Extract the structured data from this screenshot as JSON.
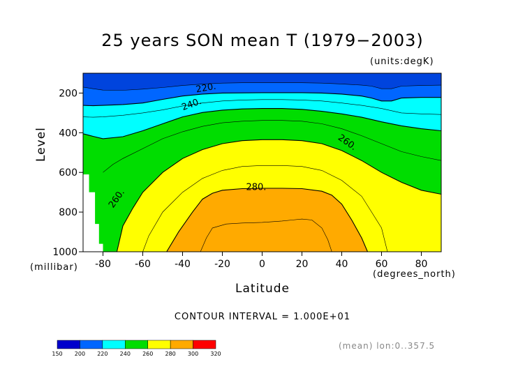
{
  "chart_data": {
    "type": "contour",
    "title": "25 years SON mean T (1979−2003)",
    "units_note": "(units:degK)",
    "xlabel": "Latitude",
    "x_unit": "(degrees_north)",
    "ylabel": "Level",
    "y_unit": "(millibar)",
    "xlim": [
      -90,
      90
    ],
    "ylim": [
      100,
      1000
    ],
    "x_ticks": [
      -80,
      -60,
      -40,
      -20,
      0,
      20,
      40,
      60,
      80
    ],
    "y_ticks": [
      200,
      400,
      600,
      800,
      1000
    ],
    "contour_interval_text": "CONTOUR INTERVAL = 1.000E+01",
    "contour_labels": [
      "220.",
      "240.",
      "260.",
      "280.",
      "260."
    ],
    "colorbar": {
      "levels": [
        150,
        200,
        220,
        240,
        260,
        280,
        300,
        320
      ],
      "colors": [
        "#0000cc",
        "#0066ff",
        "#00ffff",
        "#00dd00",
        "#ffff00",
        "#ffaa00",
        "#ff0000"
      ]
    },
    "fill_colors": {
      "lt210": "#0044dd",
      "210_220": "#0066ff",
      "220_240": "#00ffff",
      "240_260": "#00dd00",
      "260_280": "#ffff00",
      "280_300": "#ffaa00"
    },
    "levels": {
      "l210": [
        [
          -90,
          170
        ],
        [
          -85,
          178
        ],
        [
          -80,
          185
        ],
        [
          -70,
          186
        ],
        [
          -60,
          180
        ],
        [
          -50,
          172
        ],
        [
          -40,
          162
        ],
        [
          -30,
          155
        ],
        [
          -20,
          150
        ],
        [
          -10,
          148
        ],
        [
          0,
          148
        ],
        [
          10,
          148
        ],
        [
          20,
          148
        ],
        [
          30,
          150
        ],
        [
          40,
          154
        ],
        [
          50,
          160
        ],
        [
          55,
          165
        ],
        [
          60,
          178
        ],
        [
          65,
          178
        ],
        [
          70,
          165
        ],
        [
          80,
          162
        ],
        [
          90,
          160
        ]
      ],
      "l220": [
        [
          -90,
          262
        ],
        [
          -85,
          264
        ],
        [
          -80,
          262
        ],
        [
          -70,
          258
        ],
        [
          -60,
          250
        ],
        [
          -50,
          232
        ],
        [
          -40,
          215
        ],
        [
          -30,
          205
        ],
        [
          -20,
          200
        ],
        [
          -10,
          199
        ],
        [
          0,
          198
        ],
        [
          10,
          198
        ],
        [
          20,
          198
        ],
        [
          30,
          200
        ],
        [
          40,
          205
        ],
        [
          50,
          215
        ],
        [
          55,
          225
        ],
        [
          60,
          240
        ],
        [
          65,
          240
        ],
        [
          70,
          225
        ],
        [
          80,
          222
        ],
        [
          90,
          222
        ]
      ],
      "l230": [
        [
          -90,
          320
        ],
        [
          -85,
          322
        ],
        [
          -80,
          320
        ],
        [
          -70,
          312
        ],
        [
          -60,
          300
        ],
        [
          -50,
          285
        ],
        [
          -40,
          265
        ],
        [
          -30,
          250
        ],
        [
          -20,
          240
        ],
        [
          -10,
          235
        ],
        [
          0,
          233
        ],
        [
          10,
          233
        ],
        [
          20,
          235
        ],
        [
          30,
          240
        ],
        [
          40,
          250
        ],
        [
          50,
          262
        ],
        [
          60,
          278
        ],
        [
          70,
          300
        ],
        [
          80,
          305
        ],
        [
          90,
          308
        ]
      ],
      "l240": [
        [
          -90,
          405
        ],
        [
          -85,
          418
        ],
        [
          -80,
          430
        ],
        [
          -70,
          420
        ],
        [
          -60,
          390
        ],
        [
          -50,
          355
        ],
        [
          -40,
          320
        ],
        [
          -30,
          298
        ],
        [
          -20,
          286
        ],
        [
          -10,
          280
        ],
        [
          0,
          278
        ],
        [
          10,
          278
        ],
        [
          20,
          282
        ],
        [
          30,
          292
        ],
        [
          40,
          305
        ],
        [
          50,
          322
        ],
        [
          60,
          345
        ],
        [
          70,
          365
        ],
        [
          80,
          380
        ],
        [
          90,
          390
        ]
      ],
      "l250": [
        [
          -80,
          600
        ],
        [
          -75,
          560
        ],
        [
          -70,
          530
        ],
        [
          -60,
          480
        ],
        [
          -50,
          430
        ],
        [
          -40,
          395
        ],
        [
          -30,
          368
        ],
        [
          -20,
          350
        ],
        [
          -10,
          342
        ],
        [
          0,
          338
        ],
        [
          10,
          338
        ],
        [
          20,
          342
        ],
        [
          30,
          355
        ],
        [
          40,
          380
        ],
        [
          50,
          415
        ],
        [
          60,
          455
        ],
        [
          70,
          495
        ],
        [
          80,
          520
        ],
        [
          90,
          540
        ]
      ],
      "l260": [
        [
          -73,
          1000
        ],
        [
          -70,
          870
        ],
        [
          -65,
          780
        ],
        [
          -60,
          700
        ],
        [
          -50,
          600
        ],
        [
          -40,
          530
        ],
        [
          -30,
          485
        ],
        [
          -20,
          455
        ],
        [
          -10,
          440
        ],
        [
          0,
          435
        ],
        [
          10,
          435
        ],
        [
          20,
          440
        ],
        [
          30,
          455
        ],
        [
          40,
          490
        ],
        [
          50,
          540
        ],
        [
          60,
          600
        ],
        [
          70,
          650
        ],
        [
          80,
          690
        ],
        [
          90,
          710
        ]
      ],
      "l270": [
        [
          -60,
          1000
        ],
        [
          -57,
          920
        ],
        [
          -50,
          800
        ],
        [
          -40,
          700
        ],
        [
          -30,
          630
        ],
        [
          -20,
          590
        ],
        [
          -10,
          570
        ],
        [
          0,
          565
        ],
        [
          10,
          565
        ],
        [
          20,
          570
        ],
        [
          30,
          590
        ],
        [
          40,
          640
        ],
        [
          50,
          720
        ],
        [
          55,
          800
        ],
        [
          60,
          880
        ],
        [
          63,
          1000
        ]
      ],
      "l280": [
        [
          -48,
          1000
        ],
        [
          -42,
          900
        ],
        [
          -35,
          800
        ],
        [
          -30,
          735
        ],
        [
          -25,
          705
        ],
        [
          -20,
          690
        ],
        [
          -10,
          682
        ],
        [
          0,
          680
        ],
        [
          10,
          680
        ],
        [
          20,
          682
        ],
        [
          30,
          695
        ],
        [
          35,
          715
        ],
        [
          40,
          760
        ],
        [
          45,
          840
        ],
        [
          50,
          930
        ],
        [
          53,
          1000
        ]
      ],
      "l290": [
        [
          -31,
          1000
        ],
        [
          -28,
          930
        ],
        [
          -25,
          880
        ],
        [
          -18,
          860
        ],
        [
          -10,
          855
        ],
        [
          0,
          852
        ],
        [
          10,
          845
        ],
        [
          15,
          840
        ],
        [
          20,
          835
        ],
        [
          25,
          840
        ],
        [
          30,
          880
        ],
        [
          33,
          940
        ],
        [
          35,
          1000
        ]
      ]
    }
  }
}
